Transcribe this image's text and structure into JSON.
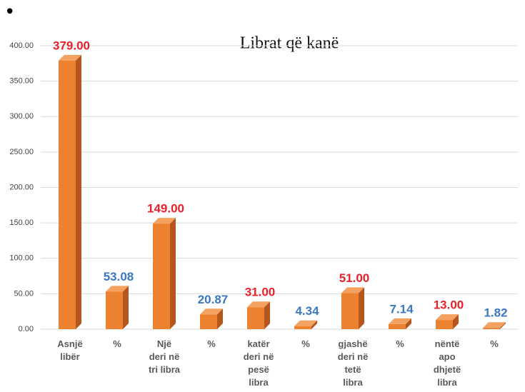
{
  "bullet": "•",
  "chart_data": {
    "type": "bar",
    "title": "Librat që kanë",
    "categories": [
      "Asnjë\nlibër",
      "%",
      "Një\nderi në\ntri libra",
      "%",
      "katër\nderi në\npesë\nlibra",
      "%",
      "gjashë\nderi në\ntetë\nlibra",
      "%",
      "nëntë\napo\ndhjetë\nlibra",
      "%"
    ],
    "values": [
      379,
      53.08,
      149,
      20.87,
      31,
      4.34,
      51,
      7.14,
      13,
      1.82
    ],
    "value_labels": [
      "379.00",
      "53.08",
      "149.00",
      "20.87",
      "31.00",
      "4.34",
      "51.00",
      "7.14",
      "13.00",
      "1.82"
    ],
    "value_label_colors": [
      "#e8202a",
      "#3a78c0",
      "#e8202a",
      "#3a78c0",
      "#e8202a",
      "#3a78c0",
      "#e8202a",
      "#3a78c0",
      "#e8202a",
      "#3a78c0"
    ],
    "color": "#ec8230",
    "ylim": [
      0,
      400
    ],
    "yticks": [
      {
        "value": 0,
        "label": "0.00"
      },
      {
        "value": 50,
        "label": "50.00"
      },
      {
        "value": 100,
        "label": "100.00"
      },
      {
        "value": 150,
        "label": "150.00"
      },
      {
        "value": 200,
        "label": "200.00"
      },
      {
        "value": 250,
        "label": "250.00"
      },
      {
        "value": 300,
        "label": "300.00"
      },
      {
        "value": 350,
        "label": "350.00"
      },
      {
        "value": 400,
        "label": "400.00"
      }
    ],
    "grid": true
  }
}
